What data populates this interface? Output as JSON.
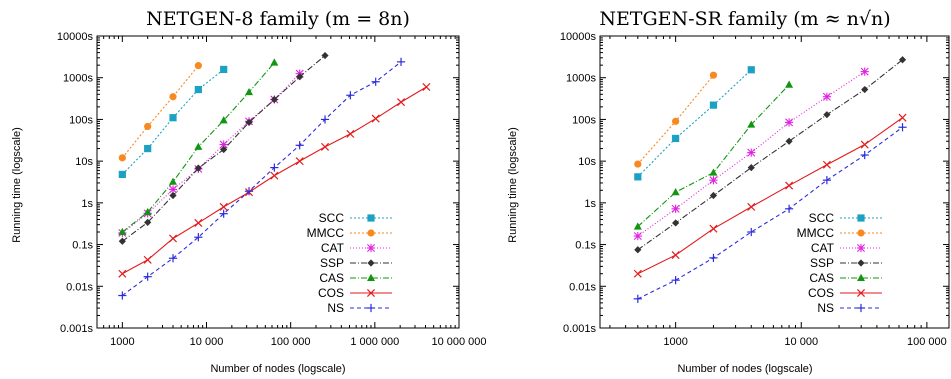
{
  "chart_data": [
    {
      "type": "line",
      "title": "NETGEN-8 family (m = 8n)",
      "xlabel": "Number of nodes (logscale)",
      "ylabel": "Running time (logscale)",
      "xscale": "log",
      "yscale": "log",
      "xlim": [
        500,
        10000000
      ],
      "ylim": [
        0.001,
        10000
      ],
      "x_ticks": [
        {
          "value": 1000,
          "label": "1000"
        },
        {
          "value": 10000,
          "label": "10 000"
        },
        {
          "value": 100000,
          "label": "100 000"
        },
        {
          "value": 1000000,
          "label": "1 000 000"
        },
        {
          "value": 10000000,
          "label": "10 000 000"
        }
      ],
      "y_ticks": [
        {
          "value": 0.001,
          "label": "0.001s"
        },
        {
          "value": 0.01,
          "label": "0.01s"
        },
        {
          "value": 0.1,
          "label": "0.1s"
        },
        {
          "value": 1,
          "label": "1s"
        },
        {
          "value": 10,
          "label": "10s"
        },
        {
          "value": 100,
          "label": "100s"
        },
        {
          "value": 1000,
          "label": "1000s"
        },
        {
          "value": 10000,
          "label": "10000s"
        }
      ],
      "legend_position": "bottom-right",
      "grid": false,
      "series": [
        {
          "name": "SCC",
          "color": "#1ba1c4",
          "marker": "square",
          "dash": "2,2",
          "x": [
            1000,
            2000,
            4000,
            8000,
            16000
          ],
          "y": [
            4.8,
            20,
            110,
            520,
            1580
          ]
        },
        {
          "name": "MMCC",
          "color": "#f7891f",
          "marker": "circle",
          "dash": "2,2",
          "x": [
            1000,
            2000,
            4000,
            8000
          ],
          "y": [
            12,
            68,
            350,
            1950
          ]
        },
        {
          "name": "CAT",
          "color": "#e020e0",
          "marker": "star",
          "dash": "1,2",
          "x": [
            1000,
            2000,
            4000,
            8000,
            16000,
            32000,
            64000,
            128000
          ],
          "y": [
            0.19,
            0.56,
            2.1,
            6.5,
            25,
            90,
            300,
            1250
          ]
        },
        {
          "name": "SSP",
          "color": "#333333",
          "marker": "diamond",
          "dash": "6,2,1,2",
          "x": [
            1000,
            2000,
            4000,
            8000,
            16000,
            32000,
            64000,
            128000,
            256000
          ],
          "y": [
            0.12,
            0.34,
            1.5,
            6.8,
            19,
            85,
            300,
            1050,
            3400
          ]
        },
        {
          "name": "CAS",
          "color": "#109610",
          "marker": "triangle",
          "dash": "6,2,1,2",
          "x": [
            1000,
            2000,
            4000,
            8000,
            16000,
            32000,
            64000
          ],
          "y": [
            0.2,
            0.6,
            3.2,
            22,
            95,
            450,
            2300
          ]
        },
        {
          "name": "COS",
          "color": "#e41a1c",
          "marker": "x",
          "dash": "",
          "x": [
            1000,
            2000,
            4000,
            8000,
            16000,
            32000,
            64000,
            128000,
            256000,
            512000,
            1024000,
            2048000,
            4096000
          ],
          "y": [
            0.02,
            0.043,
            0.14,
            0.33,
            0.8,
            1.8,
            4.5,
            10,
            22,
            45,
            105,
            260,
            600
          ]
        },
        {
          "name": "NS",
          "color": "#2c2cdc",
          "marker": "plus",
          "dash": "4,3",
          "x": [
            1000,
            2000,
            4000,
            8000,
            16000,
            32000,
            64000,
            128000,
            256000,
            512000,
            1024000,
            2048000
          ],
          "y": [
            0.006,
            0.017,
            0.047,
            0.15,
            0.55,
            1.9,
            7,
            24,
            100,
            380,
            800,
            2400
          ]
        }
      ]
    },
    {
      "type": "line",
      "title": "NETGEN-SR family (m ≈ n√n)",
      "xlabel": "Number of nodes (logscale)",
      "ylabel": "Running time (logscale)",
      "xscale": "log",
      "yscale": "log",
      "xlim": [
        250,
        150000
      ],
      "ylim": [
        0.001,
        10000
      ],
      "x_ticks": [
        {
          "value": 1000,
          "label": "1000"
        },
        {
          "value": 10000,
          "label": "10 000"
        },
        {
          "value": 100000,
          "label": "100 000"
        }
      ],
      "y_ticks": [
        {
          "value": 0.001,
          "label": "0.001s"
        },
        {
          "value": 0.01,
          "label": "0.01s"
        },
        {
          "value": 0.1,
          "label": "0.1s"
        },
        {
          "value": 1,
          "label": "1s"
        },
        {
          "value": 10,
          "label": "10s"
        },
        {
          "value": 100,
          "label": "100s"
        },
        {
          "value": 1000,
          "label": "1000s"
        },
        {
          "value": 10000,
          "label": "10000s"
        }
      ],
      "legend_position": "bottom-right",
      "grid": false,
      "series": [
        {
          "name": "SCC",
          "color": "#1ba1c4",
          "marker": "square",
          "dash": "2,2",
          "x": [
            500,
            1000,
            2000,
            4000
          ],
          "y": [
            4.2,
            35,
            220,
            1550
          ]
        },
        {
          "name": "MMCC",
          "color": "#f7891f",
          "marker": "circle",
          "dash": "2,2",
          "x": [
            500,
            1000,
            2000
          ],
          "y": [
            8.5,
            90,
            1150
          ]
        },
        {
          "name": "CAT",
          "color": "#e020e0",
          "marker": "star",
          "dash": "1,2",
          "x": [
            500,
            1000,
            2000,
            4000,
            8000,
            16000,
            32000
          ],
          "y": [
            0.16,
            0.72,
            3.5,
            16,
            85,
            350,
            1400
          ]
        },
        {
          "name": "SSP",
          "color": "#333333",
          "marker": "diamond",
          "dash": "6,2,1,2",
          "x": [
            500,
            1000,
            2000,
            4000,
            8000,
            16000,
            32000,
            64000
          ],
          "y": [
            0.075,
            0.33,
            1.5,
            7,
            30,
            130,
            520,
            2700
          ]
        },
        {
          "name": "CAS",
          "color": "#109610",
          "marker": "triangle",
          "dash": "6,2,1,2",
          "x": [
            500,
            1000,
            2000,
            4000,
            8000
          ],
          "y": [
            0.27,
            1.8,
            5.3,
            75,
            680
          ]
        },
        {
          "name": "COS",
          "color": "#e41a1c",
          "marker": "x",
          "dash": "",
          "x": [
            500,
            1000,
            2000,
            4000,
            8000,
            16000,
            32000,
            64000
          ],
          "y": [
            0.02,
            0.056,
            0.24,
            0.8,
            2.6,
            8.2,
            25,
            110
          ]
        },
        {
          "name": "NS",
          "color": "#2c2cdc",
          "marker": "plus",
          "dash": "4,3",
          "x": [
            500,
            1000,
            2000,
            4000,
            8000,
            16000,
            32000,
            64000
          ],
          "y": [
            0.005,
            0.014,
            0.048,
            0.2,
            0.72,
            3.5,
            14,
            65
          ]
        }
      ]
    }
  ]
}
